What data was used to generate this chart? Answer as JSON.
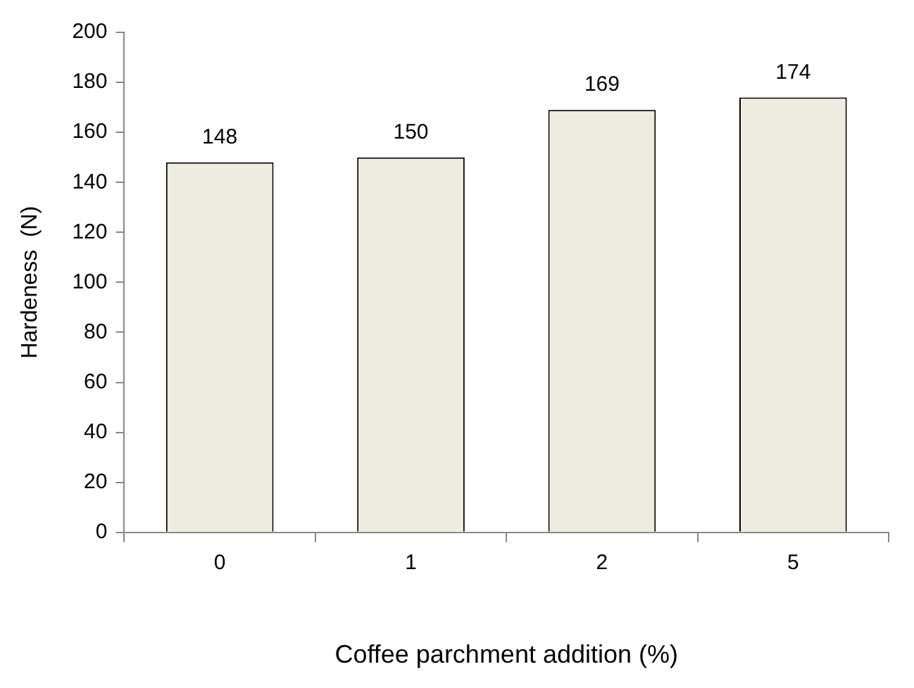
{
  "chart_data": {
    "type": "bar",
    "xlabel": "Coffee parchment addition (%)",
    "ylabel": "Hardeness  (N)",
    "categories": [
      "0",
      "1",
      "2",
      "5"
    ],
    "values": [
      148,
      150,
      169,
      174
    ],
    "color": "#eeebe0",
    "ylim": [
      0,
      200
    ],
    "yticks": [
      0,
      20,
      40,
      60,
      80,
      100,
      120,
      140,
      160,
      180,
      200
    ],
    "grid": false,
    "legend": false,
    "data_labels": true
  }
}
